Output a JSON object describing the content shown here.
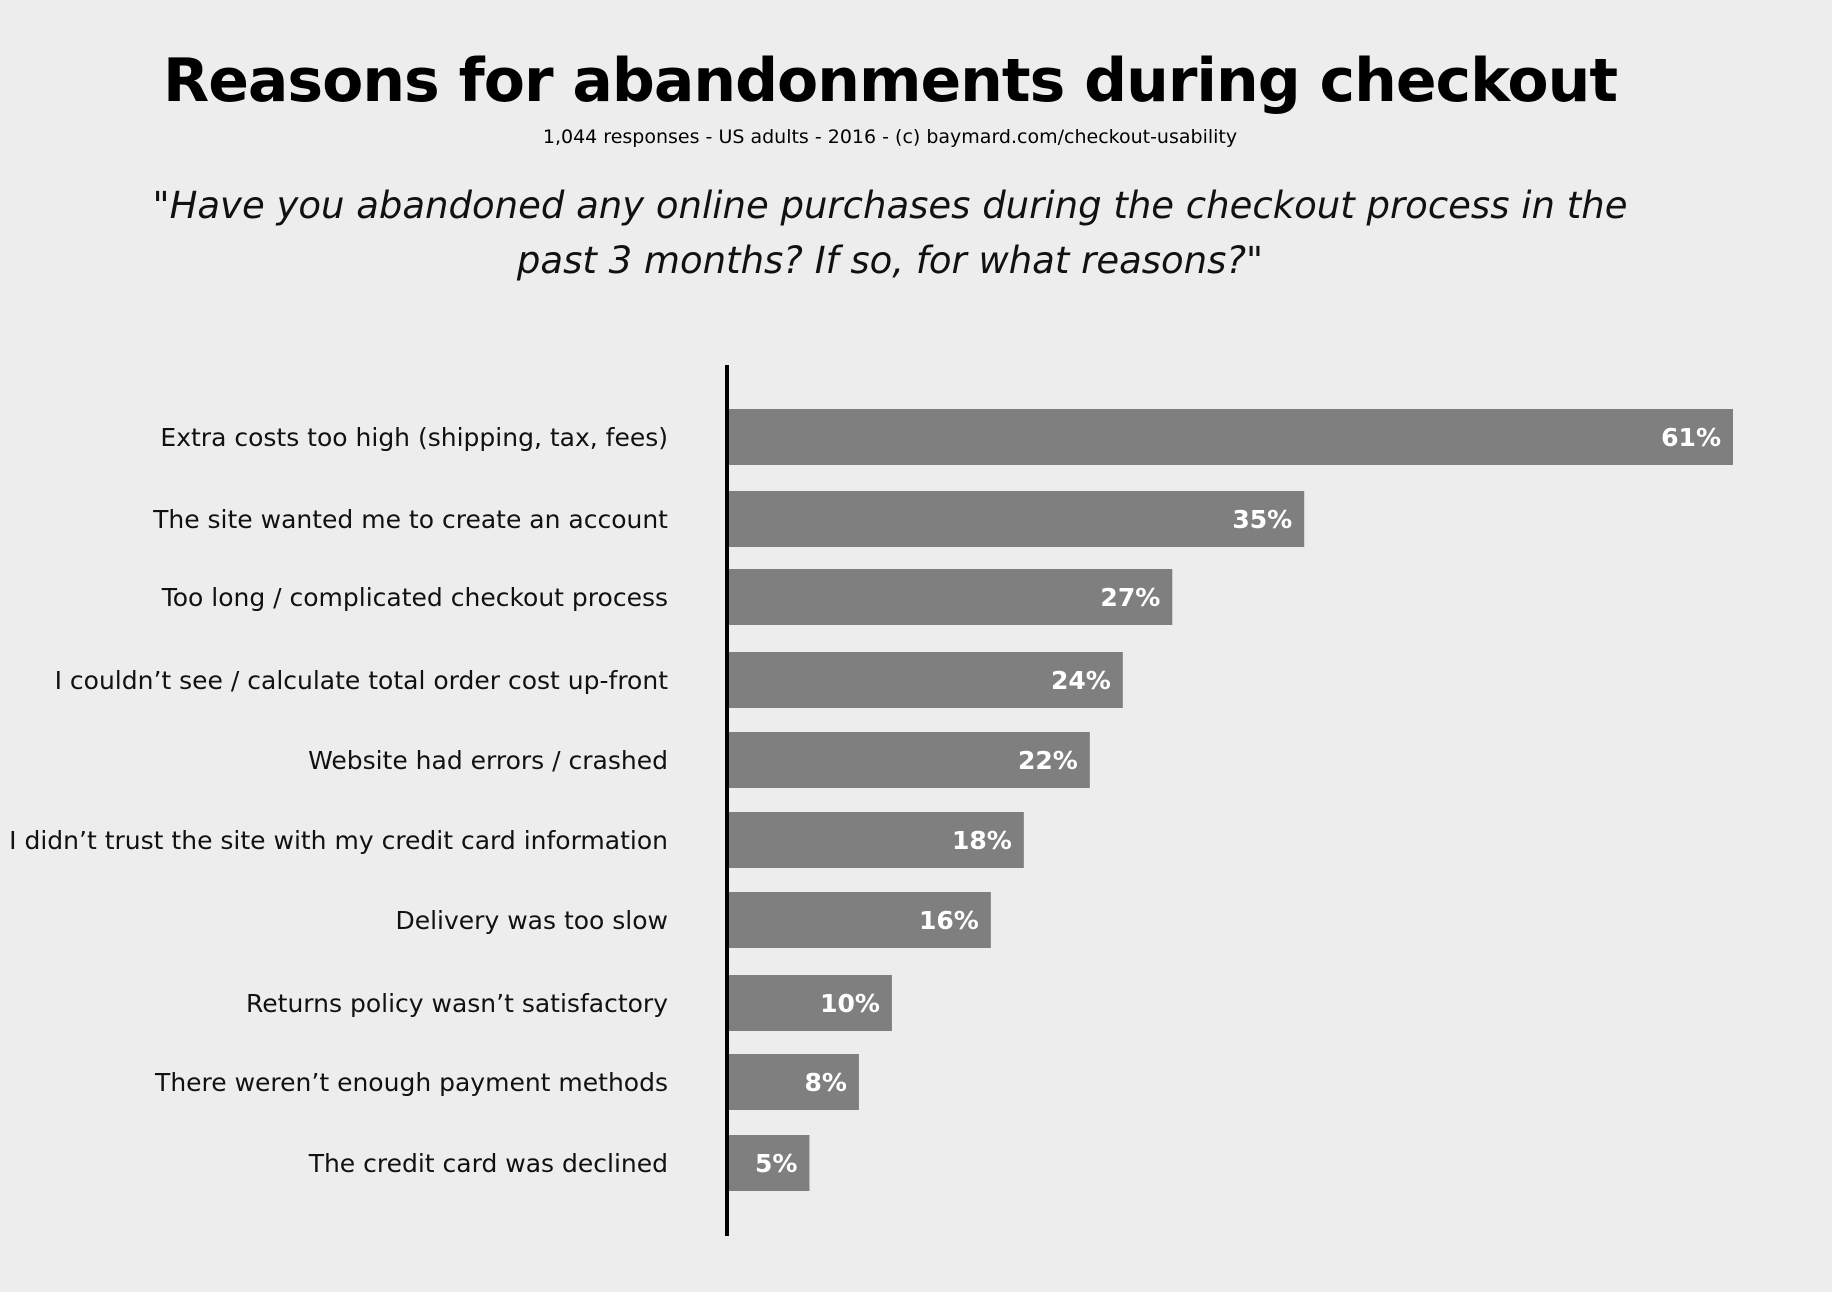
{
  "title": "Reasons for abandonments during checkout",
  "subtitle": "1,044 responses - US adults - 2016 - (c) baymard.com/checkout-usability",
  "question": "\"Have you abandoned any online purchases during the checkout process in the past 3 months? If so, for what reasons?\"",
  "colors": {
    "background": "#ededed",
    "bar": "#7f7f7f",
    "axis": "#000000",
    "value_text": "#ffffff"
  },
  "chart_data": {
    "type": "bar",
    "orientation": "horizontal",
    "categories": [
      "Extra costs too high (shipping, tax, fees)",
      "The site wanted me to create an account",
      "Too long / complicated checkout process",
      "I couldn’t see / calculate total order cost up-front",
      "Website had errors / crashed",
      "I didn’t trust the site with my credit card information",
      "Delivery was too slow",
      "Returns policy wasn’t satisfactory",
      "There weren’t enough payment methods",
      "The credit card was declined"
    ],
    "values": [
      61,
      35,
      27,
      24,
      22,
      18,
      16,
      10,
      8,
      5
    ],
    "value_labels": [
      "61%",
      "35%",
      "27%",
      "24%",
      "22%",
      "18%",
      "16%",
      "10%",
      "8%",
      "5%"
    ],
    "title": "Reasons for abandonments during checkout",
    "xlabel": "",
    "ylabel": "",
    "xlim": [
      0,
      61
    ],
    "grid": false,
    "legend": "none"
  }
}
